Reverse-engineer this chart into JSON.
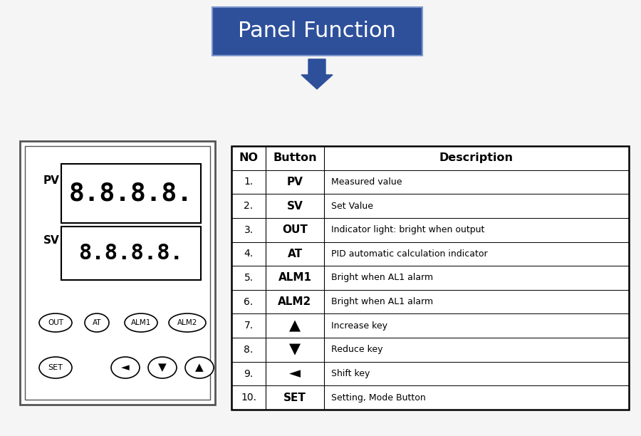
{
  "title": "Panel Function",
  "title_bg": "#2e509b",
  "title_text_color": "#ffffff",
  "bg_color": "#f5f5f5",
  "arrow_color": "#2e509b",
  "table_headers": [
    "NO",
    "Button",
    "Description"
  ],
  "table_rows": [
    [
      "1.",
      "PV",
      "Measured value"
    ],
    [
      "2.",
      "SV",
      "Set Value"
    ],
    [
      "3.",
      "OUT",
      "Indicator light: bright when output"
    ],
    [
      "4.",
      "AT",
      "PID automatic calculation indicator"
    ],
    [
      "5.",
      "ALM1",
      "Bright when AL1 alarm"
    ],
    [
      "6.",
      "ALM2",
      "Bright when AL1 alarm"
    ],
    [
      "7.",
      "▲",
      "Increase key"
    ],
    [
      "8.",
      "▼",
      "Reduce key"
    ],
    [
      "9.",
      "◄",
      "Shift key"
    ],
    [
      "10.",
      "SET",
      "Setting, Mode Button"
    ]
  ],
  "panel_border_color": "#555555",
  "panel_bg": "#ffffff"
}
